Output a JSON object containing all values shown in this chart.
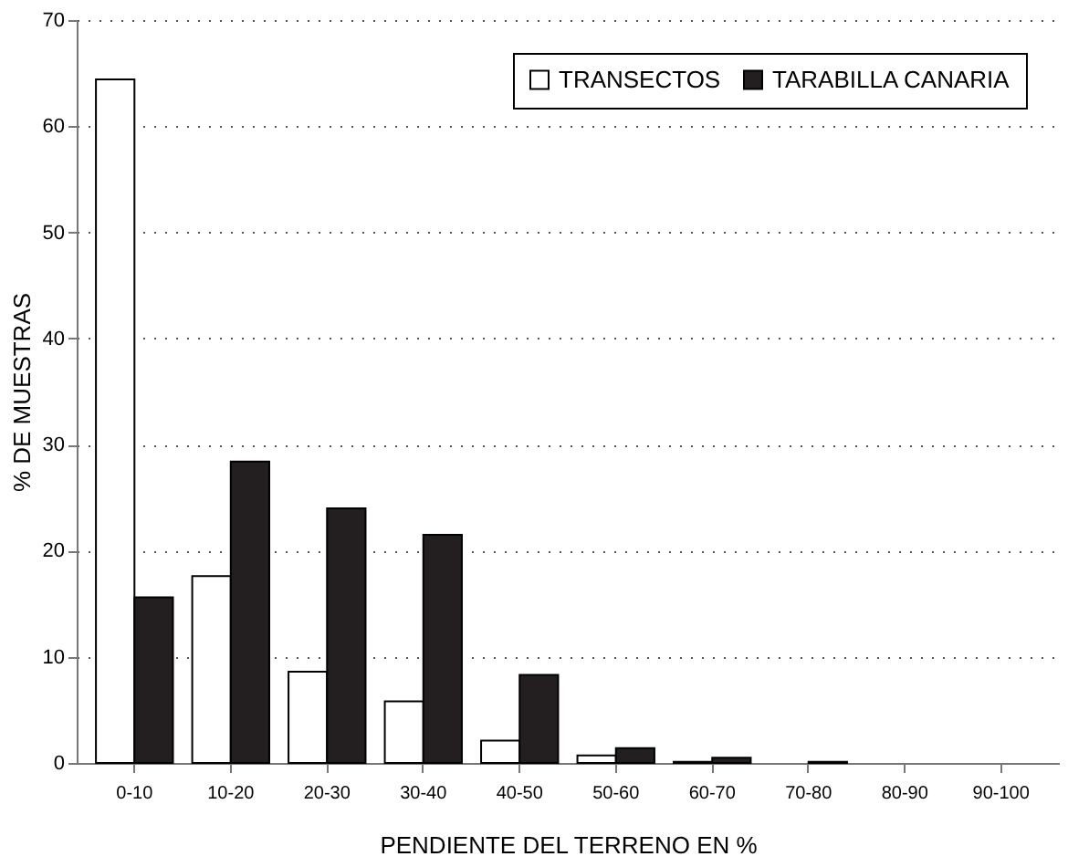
{
  "chart_data": {
    "type": "bar",
    "xlabel": "PENDIENTE DEL TERRENO EN %",
    "ylabel": "% DE MUESTRAS",
    "categories": [
      "0-10",
      "10-20",
      "20-30",
      "30-40",
      "40-50",
      "50-60",
      "60-70",
      "70-80",
      "80-90",
      "90-100"
    ],
    "series": [
      {
        "name": "TRANSECTOS",
        "color": "#ffffff",
        "values": [
          64.4,
          17.6,
          8.6,
          5.8,
          2.1,
          0.7,
          0.1,
          null,
          null,
          null
        ]
      },
      {
        "name": "TARABILLA CANARIA",
        "color": "#231f20",
        "values": [
          15.6,
          28.4,
          24.0,
          21.5,
          8.3,
          1.4,
          0.5,
          0.1,
          null,
          null
        ]
      }
    ],
    "ylim": [
      0,
      70
    ],
    "yticks": [
      0,
      10,
      20,
      30,
      40,
      50,
      60,
      70
    ],
    "grid": "y",
    "legend": "top right"
  }
}
